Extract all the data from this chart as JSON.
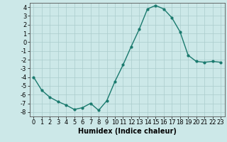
{
  "x": [
    0,
    1,
    2,
    3,
    4,
    5,
    6,
    7,
    8,
    9,
    10,
    11,
    12,
    13,
    14,
    15,
    16,
    17,
    18,
    19,
    20,
    21,
    22,
    23
  ],
  "y": [
    -4.0,
    -5.5,
    -6.3,
    -6.8,
    -7.2,
    -7.7,
    -7.5,
    -7.0,
    -7.8,
    -6.7,
    -4.5,
    -2.6,
    -0.5,
    1.5,
    3.8,
    4.2,
    3.8,
    2.8,
    1.2,
    -1.5,
    -2.2,
    -2.3,
    -2.2,
    -2.3
  ],
  "xlim": [
    -0.5,
    23.5
  ],
  "ylim": [
    -8.5,
    4.5
  ],
  "yticks": [
    -8,
    -7,
    -6,
    -5,
    -4,
    -3,
    -2,
    -1,
    0,
    1,
    2,
    3,
    4
  ],
  "xticks": [
    0,
    1,
    2,
    3,
    4,
    5,
    6,
    7,
    8,
    9,
    10,
    11,
    12,
    13,
    14,
    15,
    16,
    17,
    18,
    19,
    20,
    21,
    22,
    23
  ],
  "xlabel": "Humidex (Indice chaleur)",
  "line_color": "#1a7a6e",
  "marker": "o",
  "marker_size": 2,
  "bg_color": "#cce8e8",
  "grid_color": "#aacccc",
  "xlabel_fontsize": 7,
  "tick_fontsize": 6
}
